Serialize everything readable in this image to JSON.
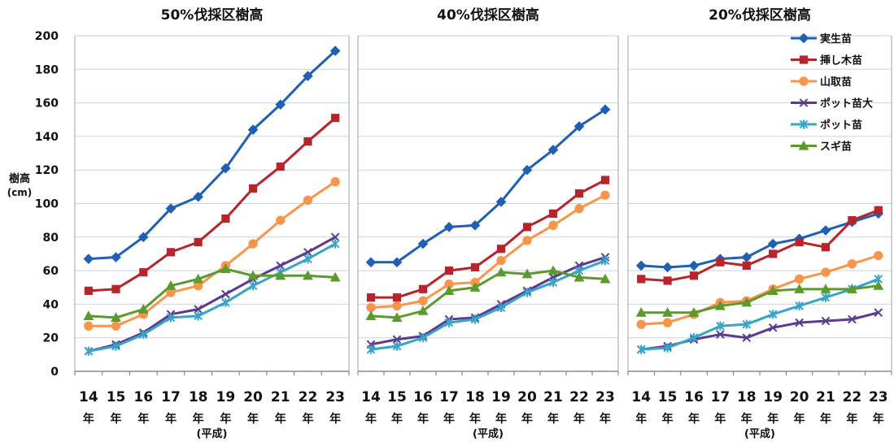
{
  "y_axis": {
    "label": "樹高",
    "unit": "(cm)"
  },
  "chart_data": [
    {
      "type": "line",
      "title": "50%伐採区樹高",
      "xlabel": "(平成)",
      "ylabel": "樹高 (cm)",
      "ylim": [
        0,
        200
      ],
      "yticks": [
        0,
        20,
        40,
        60,
        80,
        100,
        120,
        140,
        160,
        180,
        200
      ],
      "grid": true,
      "categories": [
        "14",
        "15",
        "16",
        "17",
        "18",
        "19",
        "20",
        "21",
        "22",
        "23"
      ],
      "category_suffix": "年",
      "series": [
        {
          "name": "実生苗",
          "color": "#1f5fb4",
          "marker": "diamond",
          "values": [
            67,
            68,
            80,
            97,
            104,
            121,
            144,
            159,
            176,
            191
          ]
        },
        {
          "name": "挿し木苗",
          "color": "#b8242c",
          "marker": "square",
          "values": [
            48,
            49,
            59,
            71,
            77,
            91,
            109,
            122,
            137,
            151
          ]
        },
        {
          "name": "山取苗",
          "color": "#f7964a",
          "marker": "circle",
          "values": [
            27,
            27,
            34,
            47,
            51,
            63,
            76,
            90,
            102,
            113
          ]
        },
        {
          "name": "ポット苗大",
          "color": "#5b3a8f",
          "marker": "x",
          "values": [
            12,
            16,
            23,
            34,
            37,
            46,
            55,
            63,
            71,
            80
          ]
        },
        {
          "name": "ポット苗",
          "color": "#37a4c9",
          "marker": "star",
          "values": [
            12,
            15,
            22,
            32,
            33,
            41,
            51,
            59,
            67,
            76
          ]
        },
        {
          "name": "スギ苗",
          "color": "#5b9b2e",
          "marker": "triangle",
          "values": [
            33,
            32,
            37,
            51,
            55,
            61,
            57,
            57,
            57,
            56
          ]
        }
      ]
    },
    {
      "type": "line",
      "title": "40%伐採区樹高",
      "xlabel": "(平成)",
      "ylabel": "樹高 (cm)",
      "ylim": [
        0,
        200
      ],
      "grid": true,
      "categories": [
        "14",
        "15",
        "16",
        "17",
        "18",
        "19",
        "20",
        "21",
        "22",
        "23"
      ],
      "category_suffix": "年",
      "series": [
        {
          "name": "実生苗",
          "color": "#1f5fb4",
          "marker": "diamond",
          "values": [
            65,
            65,
            76,
            86,
            87,
            101,
            120,
            132,
            146,
            156
          ]
        },
        {
          "name": "挿し木苗",
          "color": "#b8242c",
          "marker": "square",
          "values": [
            44,
            44,
            49,
            60,
            62,
            73,
            86,
            94,
            106,
            114
          ]
        },
        {
          "name": "山取苗",
          "color": "#f7964a",
          "marker": "circle",
          "values": [
            38,
            39,
            42,
            52,
            53,
            66,
            78,
            87,
            97,
            105
          ]
        },
        {
          "name": "ポット苗大",
          "color": "#5b3a8f",
          "marker": "x",
          "values": [
            16,
            19,
            21,
            31,
            32,
            40,
            48,
            56,
            63,
            68
          ]
        },
        {
          "name": "ポット苗",
          "color": "#37a4c9",
          "marker": "star",
          "values": [
            13,
            15,
            20,
            29,
            31,
            38,
            47,
            53,
            60,
            66
          ]
        },
        {
          "name": "スギ苗",
          "color": "#5b9b2e",
          "marker": "triangle",
          "values": [
            33,
            32,
            36,
            48,
            50,
            59,
            58,
            60,
            56,
            55
          ]
        }
      ]
    },
    {
      "type": "line",
      "title": "20%伐採区樹高",
      "xlabel": "(平成)",
      "ylabel": "樹高 (cm)",
      "ylim": [
        0,
        200
      ],
      "grid": true,
      "legend": "top-right",
      "categories": [
        "14",
        "15",
        "16",
        "17",
        "18",
        "19",
        "20",
        "21",
        "22",
        "23"
      ],
      "category_suffix": "年",
      "series": [
        {
          "name": "実生苗",
          "color": "#1f5fb4",
          "marker": "diamond",
          "values": [
            63,
            62,
            63,
            67,
            68,
            76,
            79,
            84,
            89,
            94
          ]
        },
        {
          "name": "挿し木苗",
          "color": "#b8242c",
          "marker": "square",
          "values": [
            55,
            54,
            57,
            65,
            63,
            70,
            77,
            74,
            90,
            96
          ]
        },
        {
          "name": "山取苗",
          "color": "#f7964a",
          "marker": "circle",
          "values": [
            28,
            29,
            34,
            41,
            42,
            49,
            55,
            59,
            64,
            69
          ]
        },
        {
          "name": "ポット苗大",
          "color": "#5b3a8f",
          "marker": "x",
          "values": [
            13,
            15,
            19,
            22,
            20,
            26,
            29,
            30,
            31,
            35
          ]
        },
        {
          "name": "ポット苗",
          "color": "#37a4c9",
          "marker": "star",
          "values": [
            13,
            14,
            20,
            27,
            28,
            34,
            39,
            44,
            49,
            55
          ]
        },
        {
          "name": "スギ苗",
          "color": "#5b9b2e",
          "marker": "triangle",
          "values": [
            35,
            35,
            35,
            39,
            41,
            48,
            49,
            49,
            49,
            51
          ]
        }
      ]
    }
  ]
}
